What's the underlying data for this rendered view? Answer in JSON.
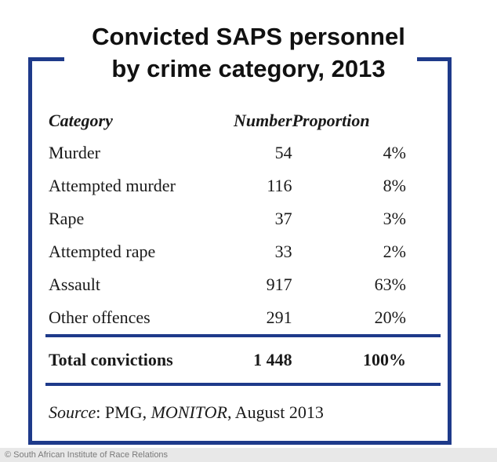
{
  "title_lines": [
    "Convicted SAPS personnel",
    "by crime category, 2013"
  ],
  "chart_data": {
    "type": "table",
    "title": "Convicted SAPS personnel by crime category, 2013",
    "columns": [
      "Category",
      "Number",
      "Proportion"
    ],
    "rows": [
      {
        "category": "Murder",
        "number": "54",
        "proportion": "4%"
      },
      {
        "category": "Attempted murder",
        "number": "116",
        "proportion": "8%"
      },
      {
        "category": "Rape",
        "number": "37",
        "proportion": "3%"
      },
      {
        "category": "Attempted rape",
        "number": "33",
        "proportion": "2%"
      },
      {
        "category": "Assault",
        "number": "917",
        "proportion": "63%"
      },
      {
        "category": "Other offences",
        "number": "291",
        "proportion": "20%"
      }
    ],
    "total": {
      "category": "Total convictions",
      "number": "1 448",
      "proportion": "100%"
    }
  },
  "source": {
    "label": "Source",
    "text_a": ": PMG, ",
    "publication": "MONITOR",
    "text_b": ", August 2013"
  },
  "credit": "© South African Institute of Race Relations",
  "colors": {
    "frame": "#1e3a8a"
  }
}
